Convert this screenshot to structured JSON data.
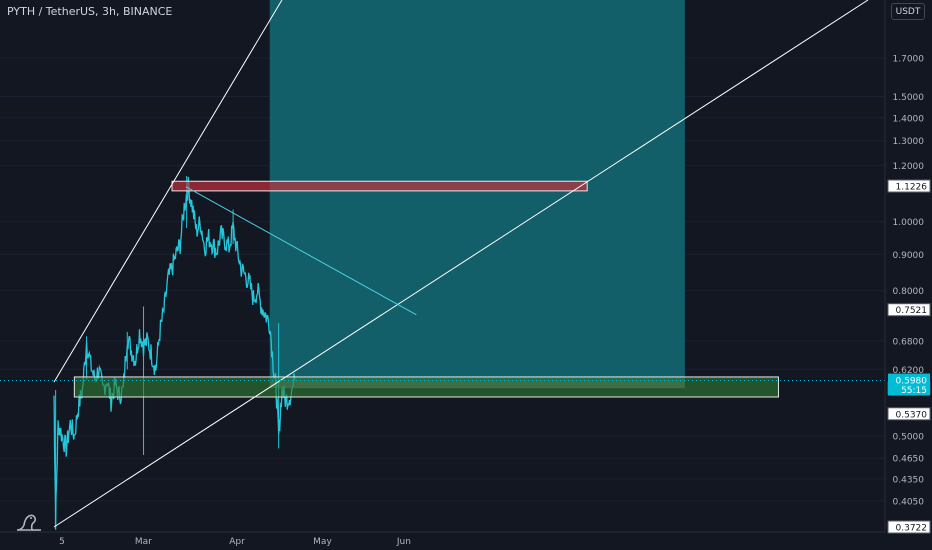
{
  "header": {
    "symbol_title": "PYTH / TetherUS, 3h, BINANCE"
  },
  "toolbar": {
    "currency": "USDT"
  },
  "colors": {
    "background": "#131722",
    "candle": "#26c6da",
    "target_zone": "#12636f",
    "stop_zone": "#5d606b",
    "supply_zone": "#c0303e",
    "demand_zone": "#2e7d32",
    "trendline": "#ffffff",
    "projection_line": "#4dd0e1",
    "current_price": "#00bcd4"
  },
  "chart_data": {
    "type": "candlestick",
    "symbol": "PYTH / TetherUS",
    "timeframe": "3h",
    "exchange": "BINANCE",
    "y_scale": "log",
    "ylim": [
      0.3722,
      2.05
    ],
    "xlim": [
      0,
      100
    ],
    "x_tick_labels": [
      {
        "label": "5",
        "x": 0
      },
      {
        "label": "Mar",
        "x": 10
      },
      {
        "label": "Apr",
        "x": 21.5
      },
      {
        "label": "May",
        "x": 32
      },
      {
        "label": "Jun",
        "x": 42
      }
    ],
    "y_tick_labels": [
      "1.7000",
      "1.5000",
      "1.4000",
      "1.3000",
      "1.2000",
      "1.0000",
      "0.9000",
      "0.8000",
      "0.6800",
      "0.6200",
      "0.5000",
      "0.4650",
      "0.4350",
      "0.4050"
    ],
    "price_labels": [
      {
        "text": "1.1226",
        "value": 1.1226,
        "style": "outlined"
      },
      {
        "text": "0.7521",
        "value": 0.7521,
        "style": "outlined"
      },
      {
        "text": "0.5968",
        "value": 0.5968,
        "style": "highlight"
      },
      {
        "text": "0.5834",
        "value": 0.5834,
        "style": "outlined"
      },
      {
        "text": "0.5370",
        "value": 0.537,
        "style": "outlined"
      },
      {
        "text": "0.3722",
        "value": 0.3722,
        "style": "outlined"
      }
    ],
    "current_price": {
      "value": 0.598,
      "label": "0.5980",
      "countdown": "55:15"
    },
    "price_path": [
      [
        0,
        0.57
      ],
      [
        0.2,
        0.38
      ],
      [
        0.5,
        0.52
      ],
      [
        1,
        0.5
      ],
      [
        1.5,
        0.48
      ],
      [
        2,
        0.52
      ],
      [
        2.5,
        0.5
      ],
      [
        3,
        0.55
      ],
      [
        3.5,
        0.58
      ],
      [
        4,
        0.68
      ],
      [
        4.5,
        0.63
      ],
      [
        5,
        0.6
      ],
      [
        5.5,
        0.62
      ],
      [
        6,
        0.58
      ],
      [
        6.5,
        0.6
      ],
      [
        7,
        0.56
      ],
      [
        7.5,
        0.59
      ],
      [
        8,
        0.57
      ],
      [
        8.5,
        0.58
      ],
      [
        9,
        0.69
      ],
      [
        9.5,
        0.66
      ],
      [
        10,
        0.64
      ],
      [
        10.5,
        0.7
      ],
      [
        11,
        0.67
      ],
      [
        11.5,
        0.68
      ],
      [
        12,
        0.65
      ],
      [
        12.5,
        0.62
      ],
      [
        13,
        0.7
      ],
      [
        13.5,
        0.75
      ],
      [
        14,
        0.83
      ],
      [
        14.5,
        0.86
      ],
      [
        15,
        0.9
      ],
      [
        15.5,
        0.93
      ],
      [
        16,
        1.05
      ],
      [
        16.5,
        1.12
      ],
      [
        17,
        1.05
      ],
      [
        17.5,
        0.97
      ],
      [
        18,
        1.0
      ],
      [
        18.5,
        0.92
      ],
      [
        19,
        0.95
      ],
      [
        19.5,
        0.93
      ],
      [
        20,
        0.91
      ],
      [
        20.5,
        0.96
      ],
      [
        21,
        0.94
      ],
      [
        21.5,
        0.92
      ],
      [
        22,
        0.98
      ],
      [
        22.5,
        0.91
      ],
      [
        23,
        0.86
      ],
      [
        23.5,
        0.84
      ],
      [
        24,
        0.82
      ],
      [
        24.5,
        0.78
      ],
      [
        25,
        0.8
      ],
      [
        25.5,
        0.76
      ],
      [
        26,
        0.74
      ],
      [
        26.5,
        0.72
      ],
      [
        27,
        0.62
      ],
      [
        27.3,
        0.58
      ],
      [
        27.6,
        0.5
      ],
      [
        28,
        0.58
      ],
      [
        28.5,
        0.56
      ],
      [
        29,
        0.57
      ],
      [
        29.6,
        0.598
      ]
    ],
    "wick_spikes": [
      {
        "x": 0.2,
        "high": 0.58,
        "low": 0.3722
      },
      {
        "x": 4,
        "high": 0.69,
        "low": 0.6
      },
      {
        "x": 9,
        "high": 0.7,
        "low": 0.62
      },
      {
        "x": 11,
        "high": 0.76,
        "low": 0.47
      },
      {
        "x": 16.3,
        "high": 1.16,
        "low": 0.98
      },
      {
        "x": 22,
        "high": 1.04,
        "low": 0.93
      },
      {
        "x": 27.6,
        "high": 0.72,
        "low": 0.48
      }
    ],
    "annotations": {
      "target_zone": {
        "x1": 26.5,
        "x2": 77.5,
        "y_top": 2.05,
        "y_bottom": 0.598
      },
      "stop_zone": {
        "x1": 26.5,
        "x2": 77.5,
        "y_top": 0.598,
        "y_bottom": 0.5834
      },
      "supply_zone": {
        "x1": 14.5,
        "x2": 65.5,
        "y_top": 1.14,
        "y_bottom": 1.105
      },
      "demand_zone": {
        "x1": 2.5,
        "x2": 89,
        "y_top": 0.605,
        "y_bottom": 0.567
      },
      "trend_lines": [
        {
          "x1": 0,
          "y1": 0.595,
          "x2": 28,
          "y2": 2.05
        },
        {
          "x1": 0,
          "y1": 0.3722,
          "x2": 100,
          "y2": 2.05
        },
        {
          "x1": 16.2,
          "y1": 1.12,
          "x2": 44.5,
          "y2": 0.74
        }
      ]
    }
  }
}
